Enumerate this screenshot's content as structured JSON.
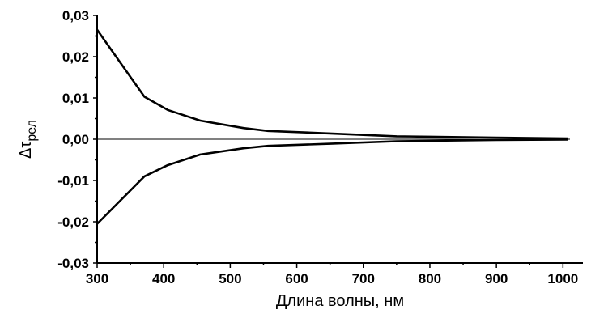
{
  "chart_data": {
    "type": "line",
    "xlabel": "Длина волны, нм",
    "ylabel": "Δτ",
    "ylabel_sub": "рел",
    "xlim": [
      300,
      1030
    ],
    "ylim": [
      -0.03,
      0.03
    ],
    "xticks": [
      300,
      400,
      500,
      600,
      700,
      800,
      900,
      1000
    ],
    "yticks": [
      {
        "value": 0.03,
        "label": "0,03"
      },
      {
        "value": 0.02,
        "label": "0,02"
      },
      {
        "value": 0.01,
        "label": "0,01"
      },
      {
        "value": 0.0,
        "label": "0,00"
      },
      {
        "value": -0.01,
        "label": "-0,01"
      },
      {
        "value": -0.02,
        "label": "-0,02"
      },
      {
        "value": -0.03,
        "label": "-0,03"
      }
    ],
    "zero_line": true,
    "series": [
      {
        "x": [
          300,
          371,
          406,
          455,
          520,
          557,
          650,
          750,
          800,
          900,
          1007
        ],
        "y": [
          0.0265,
          0.0103,
          0.0071,
          0.0045,
          0.0027,
          0.002,
          0.0014,
          0.0007,
          0.0006,
          0.0004,
          0.0002
        ]
      },
      {
        "x": [
          300,
          371,
          406,
          455,
          520,
          557,
          650,
          750,
          800,
          900,
          1007
        ],
        "y": [
          -0.0205,
          -0.009,
          -0.0063,
          -0.0037,
          -0.0022,
          -0.0016,
          -0.0011,
          -0.0005,
          -0.0004,
          -0.0002,
          -0.0001
        ]
      }
    ]
  }
}
